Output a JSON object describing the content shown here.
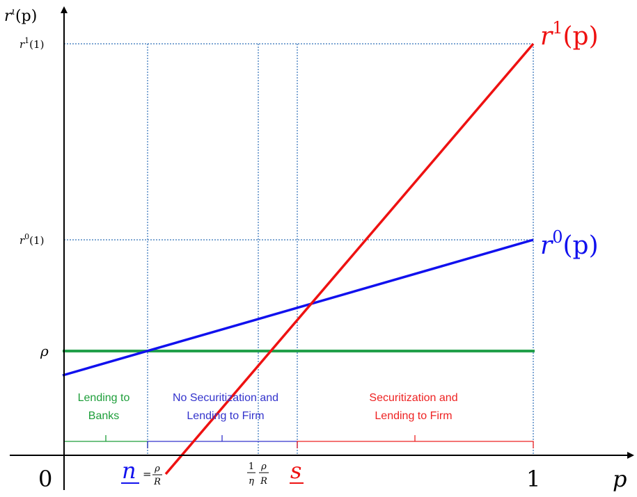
{
  "colors": {
    "axis": "#000000",
    "guide": "#2E6FB8",
    "rho_line": "#22A04A",
    "r1_line": "#EE1111",
    "r0_line": "#1111EE",
    "green_text": "#1E9E3A",
    "blue_text": "#3333CC",
    "red_text": "#EE2222"
  },
  "axes": {
    "y_label_main": "r",
    "y_label_sup": "ι",
    "y_label_arg": "(p)",
    "x_label": "p",
    "origin_label": "0",
    "x_one_label": "1"
  },
  "y_ticks": {
    "r1_one": {
      "main": "r",
      "sup": "1",
      "arg": "(1)"
    },
    "r0_one": {
      "main": "r",
      "sup": "0",
      "arg": "(1)"
    },
    "rho": "ρ"
  },
  "curves": {
    "r1": {
      "main": "r",
      "sup": "1",
      "arg": "(p)"
    },
    "r0": {
      "main": "r",
      "sup": "0",
      "arg": "(p)"
    }
  },
  "x_ticks": {
    "n": {
      "symbol": "n",
      "eq": "=",
      "num": "ρ",
      "den": "R"
    },
    "eta": {
      "num1": "1",
      "den1": "η",
      "num2": "ρ",
      "den2": "R"
    },
    "s": {
      "symbol": "s"
    }
  },
  "regions": {
    "banks": {
      "line1": "Lending to",
      "line2": "Banks"
    },
    "no_sec": {
      "line1": "No Securitization and",
      "line2": "Lending to Firm"
    },
    "sec": {
      "line1": "Securitization and",
      "line2": "Lending to Firm"
    }
  }
}
